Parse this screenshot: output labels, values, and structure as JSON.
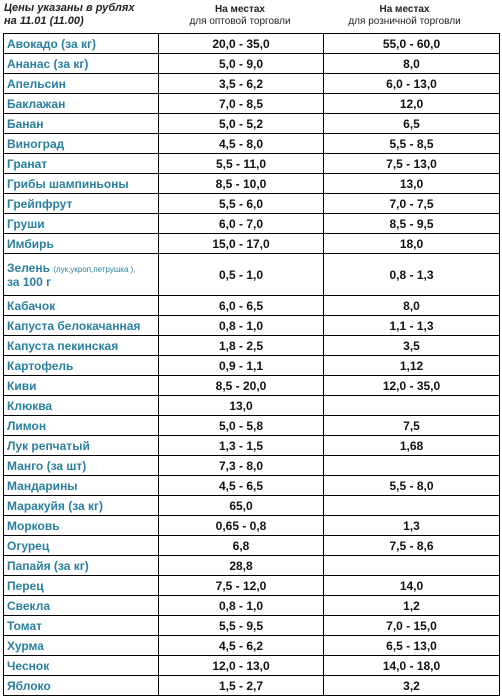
{
  "header": {
    "note_lines": [
      "Цены указаны в рублях",
      "на 11.01 (11.00)"
    ],
    "columns": [
      [
        "На местах",
        "для оптовой торговли"
      ],
      [
        "На местах",
        "для розничной торговли"
      ]
    ]
  },
  "table": {
    "rows": [
      {
        "name": "Авокадо (за кг)",
        "wholesale": "20,0 - 35,0",
        "retail": "55,0 - 60,0"
      },
      {
        "name": "Ананас (за кг)",
        "wholesale": "5,0 - 9,0",
        "retail": "8,0"
      },
      {
        "name": "Апельсин",
        "wholesale": "3,5 - 6,2",
        "retail": "6,0 - 13,0"
      },
      {
        "name": "Баклажан",
        "wholesale": "7,0 - 8,5",
        "retail": "12,0"
      },
      {
        "name": "Банан",
        "wholesale": "5,0 - 5,2",
        "retail": "6,5"
      },
      {
        "name": "Виноград",
        "wholesale": "4,5 - 8,0",
        "retail": "5,5 - 8,5"
      },
      {
        "name": "Гранат",
        "wholesale": "5,5 - 11,0",
        "retail": "7,5 - 13,0"
      },
      {
        "name": "Грибы шампиньоны",
        "wholesale": "8,5 - 10,0",
        "retail": "13,0"
      },
      {
        "name": "Грейпфрут",
        "wholesale": "5,5 - 6,0",
        "retail": "7,0 - 7,5"
      },
      {
        "name": "Груши",
        "wholesale": "6,0 - 7,0",
        "retail": "8,5 - 9,5"
      },
      {
        "name": "Имбирь",
        "wholesale": "15,0 - 17,0",
        "retail": "18,0"
      },
      {
        "name": "Зелень",
        "note": "(лук,укроп,петрушка ),",
        "tail": "за 100 г",
        "wholesale": "0,5 - 1,0",
        "retail": "0,8 - 1,3"
      },
      {
        "name": "Кабачок",
        "wholesale": "6,0 - 6,5",
        "retail": "8,0"
      },
      {
        "name": "Капуста белокачанная",
        "wholesale": "0,8 - 1,0",
        "retail": "1,1 - 1,3"
      },
      {
        "name": "Капуста пекинская",
        "wholesale": "1,8 - 2,5",
        "retail": "3,5"
      },
      {
        "name": "Картофель",
        "wholesale": "0,9 - 1,1",
        "retail": "1,12"
      },
      {
        "name": "Киви",
        "wholesale": "8,5 - 20,0",
        "retail": "12,0 - 35,0"
      },
      {
        "name": "Клюква",
        "wholesale": "13,0"
      },
      {
        "name": "Лимон",
        "wholesale": "5,0 - 5,8",
        "retail": "7,5"
      },
      {
        "name": "Лук репчатый",
        "wholesale": "1,3 - 1,5",
        "retail": "1,68"
      },
      {
        "name": "Манго (за шт)",
        "wholesale": "7,3 - 8,0"
      },
      {
        "name": "Мандарины",
        "wholesale": "4,5 - 6,5",
        "retail": "5,5 - 8,0"
      },
      {
        "name": "Маракуйя (за кг)",
        "wholesale": "65,0"
      },
      {
        "name": "Морковь",
        "wholesale": "0,65 - 0,8",
        "retail": "1,3"
      },
      {
        "name": "Огурец",
        "wholesale": "6,8",
        "retail": "7,5 - 8,6"
      },
      {
        "name": "Папайя (за кг)",
        "wholesale": "28,8"
      },
      {
        "name": "Перец",
        "wholesale": "7,5 - 12,0",
        "retail": "14,0"
      },
      {
        "name": "Свекла",
        "wholesale": "0,8 - 1,0",
        "retail": "1,2"
      },
      {
        "name": "Томат",
        "wholesale": "5,5 - 9,5",
        "retail": "7,0 - 15,0"
      },
      {
        "name": "Хурма",
        "wholesale": "4,5 - 6,2",
        "retail": "6,5 - 13,0"
      },
      {
        "name": "Чеснок",
        "wholesale": "12,0 - 13,0",
        "retail": "14,0 - 18,0"
      },
      {
        "name": "Яблоко",
        "wholesale": "1,5 - 2,7",
        "retail": "3,2"
      }
    ]
  }
}
